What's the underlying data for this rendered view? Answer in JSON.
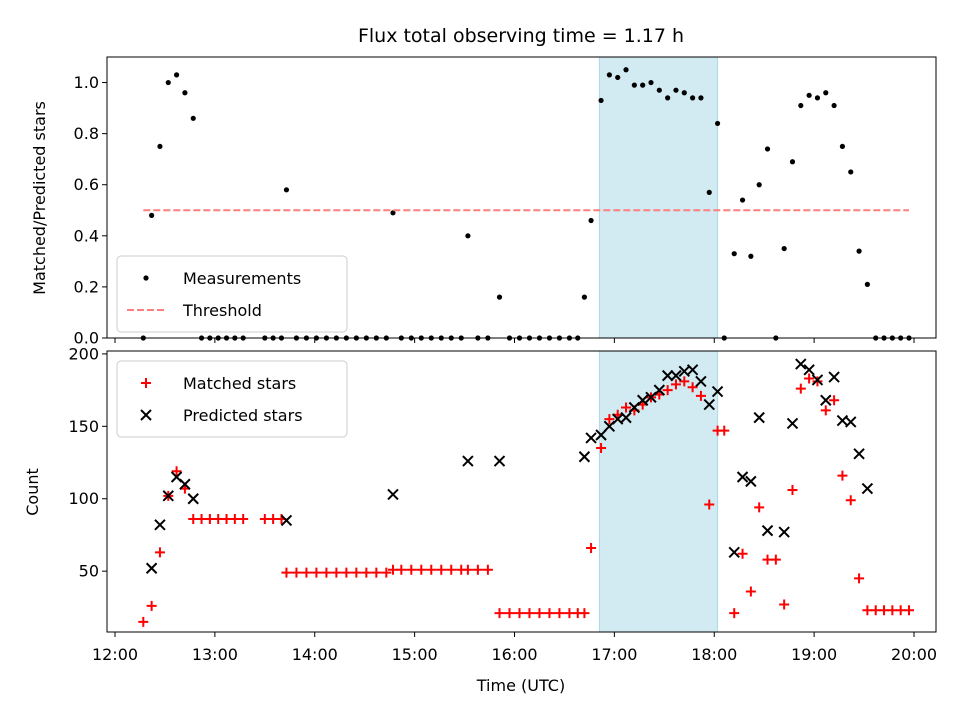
{
  "chart_data": [
    {
      "type": "scatter",
      "title": "Flux total observing time = 1.17 h",
      "xlabel": "",
      "ylabel": "Matched/Predicted stars",
      "xlim": [
        "12:00",
        "20:00"
      ],
      "ylim": [
        0,
        1.1
      ],
      "yticks": [
        "0.0",
        "0.2",
        "0.4",
        "0.6",
        "0.8",
        "1.0"
      ],
      "highlight_span": {
        "from": "16:51",
        "to": "18:02",
        "color": "#add8e6"
      },
      "legend_position": "lower-left",
      "series": [
        {
          "name": "Measurements",
          "style": "dot",
          "color": "#000000",
          "points": [
            [
              "12:17",
              0.0
            ],
            [
              "12:22",
              0.48
            ],
            [
              "12:27",
              0.75
            ],
            [
              "12:32",
              1.0
            ],
            [
              "12:37",
              1.03
            ],
            [
              "12:42",
              0.96
            ],
            [
              "12:47",
              0.86
            ],
            [
              "12:52",
              0.0
            ],
            [
              "12:57",
              0.0
            ],
            [
              "13:02",
              0.0
            ],
            [
              "13:07",
              0.0
            ],
            [
              "13:12",
              0.0
            ],
            [
              "13:17",
              0.0
            ],
            [
              "13:30",
              0.0
            ],
            [
              "13:35",
              0.0
            ],
            [
              "13:40",
              0.0
            ],
            [
              "13:43",
              0.58
            ],
            [
              "13:49",
              0.0
            ],
            [
              "13:55",
              0.0
            ],
            [
              "14:01",
              0.0
            ],
            [
              "14:07",
              0.0
            ],
            [
              "14:13",
              0.0
            ],
            [
              "14:19",
              0.0
            ],
            [
              "14:25",
              0.0
            ],
            [
              "14:31",
              0.0
            ],
            [
              "14:37",
              0.0
            ],
            [
              "14:43",
              0.0
            ],
            [
              "14:47",
              0.49
            ],
            [
              "14:52",
              0.0
            ],
            [
              "14:58",
              0.0
            ],
            [
              "15:04",
              0.0
            ],
            [
              "15:10",
              0.0
            ],
            [
              "15:16",
              0.0
            ],
            [
              "15:22",
              0.0
            ],
            [
              "15:28",
              0.0
            ],
            [
              "15:32",
              0.4
            ],
            [
              "15:38",
              0.0
            ],
            [
              "15:44",
              0.0
            ],
            [
              "15:51",
              0.16
            ],
            [
              "15:57",
              0.0
            ],
            [
              "16:03",
              0.0
            ],
            [
              "16:09",
              0.0
            ],
            [
              "16:15",
              0.0
            ],
            [
              "16:21",
              0.0
            ],
            [
              "16:27",
              0.0
            ],
            [
              "16:33",
              0.0
            ],
            [
              "16:38",
              0.0
            ],
            [
              "16:42",
              0.16
            ],
            [
              "16:46",
              0.46
            ],
            [
              "16:52",
              0.93
            ],
            [
              "16:57",
              1.03
            ],
            [
              "17:02",
              1.02
            ],
            [
              "17:07",
              1.05
            ],
            [
              "17:12",
              0.99
            ],
            [
              "17:17",
              0.99
            ],
            [
              "17:22",
              1.0
            ],
            [
              "17:27",
              0.97
            ],
            [
              "17:32",
              0.94
            ],
            [
              "17:37",
              0.97
            ],
            [
              "17:42",
              0.96
            ],
            [
              "17:47",
              0.94
            ],
            [
              "17:52",
              0.94
            ],
            [
              "17:57",
              0.57
            ],
            [
              "18:02",
              0.84
            ],
            [
              "18:06",
              0.0
            ],
            [
              "18:12",
              0.33
            ],
            [
              "18:17",
              0.54
            ],
            [
              "18:22",
              0.32
            ],
            [
              "18:27",
              0.6
            ],
            [
              "18:32",
              0.74
            ],
            [
              "18:37",
              0.0
            ],
            [
              "18:42",
              0.35
            ],
            [
              "18:47",
              0.69
            ],
            [
              "18:52",
              0.91
            ],
            [
              "18:57",
              0.95
            ],
            [
              "19:02",
              0.94
            ],
            [
              "19:07",
              0.96
            ],
            [
              "19:12",
              0.91
            ],
            [
              "19:17",
              0.75
            ],
            [
              "19:22",
              0.65
            ],
            [
              "19:27",
              0.34
            ],
            [
              "19:32",
              0.21
            ],
            [
              "19:37",
              0.0
            ],
            [
              "19:42",
              0.0
            ],
            [
              "19:47",
              0.0
            ],
            [
              "19:52",
              0.0
            ],
            [
              "19:57",
              0.0
            ]
          ]
        },
        {
          "name": "Threshold",
          "style": "dashed-line",
          "color": "#ff7f7f",
          "points": [
            [
              "12:17",
              0.5
            ],
            [
              "19:57",
              0.5
            ]
          ]
        }
      ]
    },
    {
      "type": "scatter",
      "title": "",
      "xlabel": "Time (UTC)",
      "ylabel": "Count",
      "xlim": [
        "12:00",
        "20:00"
      ],
      "ylim": [
        8,
        202
      ],
      "xticks": [
        "12:00",
        "13:00",
        "14:00",
        "15:00",
        "16:00",
        "17:00",
        "18:00",
        "19:00",
        "20:00"
      ],
      "yticks": [
        "50",
        "100",
        "150",
        "200"
      ],
      "highlight_span": {
        "from": "16:51",
        "to": "18:02",
        "color": "#add8e6"
      },
      "legend_position": "top-left",
      "series": [
        {
          "name": "Matched stars",
          "style": "plus",
          "color": "#ff0000",
          "points": [
            [
              "12:17",
              15
            ],
            [
              "12:22",
              26
            ],
            [
              "12:27",
              63
            ],
            [
              "12:32",
              102
            ],
            [
              "12:37",
              119
            ],
            [
              "12:42",
              107
            ],
            [
              "12:47",
              86
            ],
            [
              "12:52",
              86
            ],
            [
              "12:57",
              86
            ],
            [
              "13:02",
              86
            ],
            [
              "13:07",
              86
            ],
            [
              "13:12",
              86
            ],
            [
              "13:17",
              86
            ],
            [
              "13:30",
              86
            ],
            [
              "13:35",
              86
            ],
            [
              "13:40",
              86
            ],
            [
              "13:43",
              49
            ],
            [
              "13:49",
              49
            ],
            [
              "13:55",
              49
            ],
            [
              "14:01",
              49
            ],
            [
              "14:07",
              49
            ],
            [
              "14:13",
              49
            ],
            [
              "14:19",
              49
            ],
            [
              "14:25",
              49
            ],
            [
              "14:31",
              49
            ],
            [
              "14:37",
              49
            ],
            [
              "14:43",
              49
            ],
            [
              "14:47",
              51
            ],
            [
              "14:52",
              51
            ],
            [
              "14:58",
              51
            ],
            [
              "15:04",
              51
            ],
            [
              "15:10",
              51
            ],
            [
              "15:16",
              51
            ],
            [
              "15:22",
              51
            ],
            [
              "15:28",
              51
            ],
            [
              "15:32",
              51
            ],
            [
              "15:38",
              51
            ],
            [
              "15:44",
              51
            ],
            [
              "15:51",
              21
            ],
            [
              "15:57",
              21
            ],
            [
              "16:03",
              21
            ],
            [
              "16:09",
              21
            ],
            [
              "16:15",
              21
            ],
            [
              "16:21",
              21
            ],
            [
              "16:27",
              21
            ],
            [
              "16:33",
              21
            ],
            [
              "16:38",
              21
            ],
            [
              "16:42",
              21
            ],
            [
              "16:46",
              66
            ],
            [
              "16:52",
              135
            ],
            [
              "16:57",
              155
            ],
            [
              "17:02",
              158
            ],
            [
              "17:07",
              163
            ],
            [
              "17:12",
              161
            ],
            [
              "17:17",
              165
            ],
            [
              "17:22",
              170
            ],
            [
              "17:27",
              172
            ],
            [
              "17:32",
              175
            ],
            [
              "17:37",
              179
            ],
            [
              "17:42",
              181
            ],
            [
              "17:47",
              177
            ],
            [
              "17:52",
              171
            ],
            [
              "17:57",
              96
            ],
            [
              "18:02",
              147
            ],
            [
              "18:06",
              147
            ],
            [
              "18:12",
              21
            ],
            [
              "18:17",
              62
            ],
            [
              "18:22",
              36
            ],
            [
              "18:27",
              94
            ],
            [
              "18:32",
              58
            ],
            [
              "18:37",
              58
            ],
            [
              "18:42",
              27
            ],
            [
              "18:47",
              106
            ],
            [
              "18:52",
              176
            ],
            [
              "18:57",
              183
            ],
            [
              "19:02",
              181
            ],
            [
              "19:07",
              161
            ],
            [
              "19:12",
              168
            ],
            [
              "19:17",
              116
            ],
            [
              "19:22",
              99
            ],
            [
              "19:27",
              45
            ],
            [
              "19:32",
              23
            ],
            [
              "19:37",
              23
            ],
            [
              "19:42",
              23
            ],
            [
              "19:47",
              23
            ],
            [
              "19:52",
              23
            ],
            [
              "19:57",
              23
            ]
          ]
        },
        {
          "name": "Predicted stars",
          "style": "cross",
          "color": "#000000",
          "points": [
            [
              "12:22",
              52
            ],
            [
              "12:27",
              82
            ],
            [
              "12:32",
              102
            ],
            [
              "12:37",
              115
            ],
            [
              "12:42",
              110
            ],
            [
              "12:47",
              100
            ],
            [
              "13:43",
              85
            ],
            [
              "14:47",
              103
            ],
            [
              "15:32",
              126
            ],
            [
              "15:51",
              126
            ],
            [
              "16:42",
              129
            ],
            [
              "16:46",
              142
            ],
            [
              "16:52",
              144
            ],
            [
              "16:57",
              150
            ],
            [
              "17:02",
              155
            ],
            [
              "17:07",
              156
            ],
            [
              "17:12",
              163
            ],
            [
              "17:17",
              168
            ],
            [
              "17:22",
              170
            ],
            [
              "17:27",
              175
            ],
            [
              "17:32",
              185
            ],
            [
              "17:37",
              185
            ],
            [
              "17:42",
              188
            ],
            [
              "17:47",
              189
            ],
            [
              "17:52",
              181
            ],
            [
              "17:57",
              165
            ],
            [
              "18:02",
              174
            ],
            [
              "18:12",
              63
            ],
            [
              "18:17",
              115
            ],
            [
              "18:22",
              112
            ],
            [
              "18:27",
              156
            ],
            [
              "18:32",
              78
            ],
            [
              "18:42",
              77
            ],
            [
              "18:47",
              152
            ],
            [
              "18:52",
              193
            ],
            [
              "18:57",
              189
            ],
            [
              "19:02",
              182
            ],
            [
              "19:07",
              168
            ],
            [
              "19:12",
              184
            ],
            [
              "19:17",
              154
            ],
            [
              "19:22",
              153
            ],
            [
              "19:27",
              131
            ],
            [
              "19:32",
              107
            ]
          ]
        }
      ]
    }
  ]
}
